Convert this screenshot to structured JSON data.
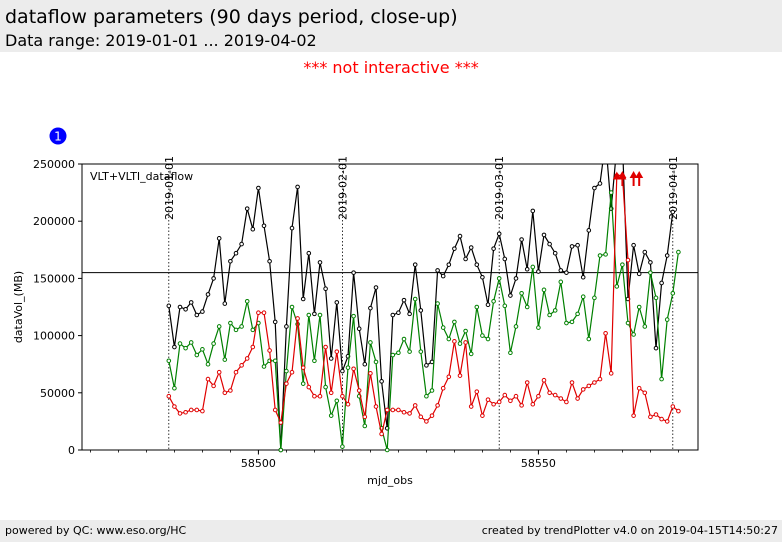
{
  "header": {
    "title": "dataflow parameters (90 days period, close-up)",
    "subtitle": "Data range: 2019-01-01 ... 2019-04-02"
  },
  "notice": "*** not interactive ***",
  "badge": "1",
  "footer": {
    "left": "powered by QC: www.eso.org/HC",
    "right": "created by trendPlotter v4.0 on 2019-04-15T14:50:27"
  },
  "colors": {
    "black": "#000000",
    "green": "#008000",
    "red": "#e00000",
    "notice": "#ff0000",
    "badge": "#0000ff"
  },
  "chart_data": {
    "type": "line",
    "title": "",
    "xlabel": "mjd_obs",
    "ylabel": "dataVol_(MB)",
    "annotation": "VLT+VLTI_dataflow",
    "xlim": [
      58468.5,
      58578.5
    ],
    "ylim": [
      0,
      250000
    ],
    "x_ticks": [
      58500,
      58550
    ],
    "x_ticks_minor_step": 5,
    "y_ticks": [
      0,
      50000,
      100000,
      150000,
      200000,
      250000
    ],
    "reference_line": 155000,
    "date_markers": [
      {
        "label": "2019-01-01",
        "x": 58484
      },
      {
        "label": "2019-02-01",
        "x": 58515
      },
      {
        "label": "2019-03-01",
        "x": 58543
      },
      {
        "label": "2019-04-01",
        "x": 58574
      }
    ],
    "x": [
      58484,
      58485,
      58486,
      58487,
      58488,
      58489,
      58490,
      58491,
      58492,
      58493,
      58494,
      58495,
      58496,
      58497,
      58498,
      58499,
      58500,
      58501,
      58502,
      58503,
      58504,
      58505,
      58506,
      58507,
      58508,
      58509,
      58510,
      58511,
      58512,
      58513,
      58514,
      58515,
      58516,
      58517,
      58518,
      58519,
      58520,
      58521,
      58522,
      58523,
      58524,
      58525,
      58526,
      58527,
      58528,
      58529,
      58530,
      58531,
      58532,
      58533,
      58534,
      58535,
      58536,
      58537,
      58538,
      58539,
      58540,
      58541,
      58542,
      58543,
      58544,
      58545,
      58546,
      58547,
      58548,
      58549,
      58550,
      58551,
      58552,
      58553,
      58554,
      58555,
      58556,
      58557,
      58558,
      58559,
      58560,
      58561,
      58562,
      58563,
      58564,
      58565,
      58566,
      58567,
      58568,
      58569,
      58570,
      58571,
      58572,
      58573,
      58574,
      58575
    ],
    "series": [
      {
        "color": "#000000",
        "values": [
          126000,
          90000,
          125000,
          123000,
          129000,
          118000,
          121000,
          136000,
          150000,
          185000,
          128000,
          165000,
          172000,
          180000,
          211000,
          193000,
          229000,
          196000,
          165000,
          112000,
          0,
          108000,
          194000,
          230000,
          132000,
          172000,
          119000,
          164000,
          141000,
          80000,
          129000,
          69000,
          82000,
          155000,
          106000,
          75000,
          124000,
          142000,
          60000,
          19000,
          118000,
          120000,
          131000,
          119000,
          162000,
          122000,
          74000,
          77000,
          157000,
          152000,
          162000,
          176000,
          187000,
          167000,
          177000,
          162000,
          151000,
          127000,
          176000,
          189000,
          167000,
          135000,
          150000,
          184000,
          158000,
          209000,
          156000,
          188000,
          180000,
          172000,
          157000,
          155000,
          178000,
          179000,
          151000,
          192000,
          229000,
          233000,
          270000,
          211000,
          265000,
          270000,
          132000,
          179000,
          154000,
          173000,
          164000,
          89000,
          146000,
          170000,
          208000,
          null
        ],
        "over_range_x": [
          58565,
          58567,
          58568
        ]
      },
      {
        "color": "#008000",
        "values": [
          78000,
          54000,
          93000,
          89000,
          94000,
          83000,
          88000,
          75000,
          93000,
          108000,
          79000,
          111000,
          105000,
          108000,
          130000,
          105000,
          111000,
          73000,
          78000,
          78000,
          0,
          69000,
          125000,
          110000,
          58000,
          118000,
          78000,
          118000,
          55000,
          30000,
          43000,
          3000,
          72000,
          117000,
          47000,
          21000,
          94000,
          77000,
          19000,
          0,
          83000,
          85000,
          97000,
          86000,
          132000,
          86000,
          47000,
          52000,
          128000,
          107000,
          97000,
          112000,
          93000,
          104000,
          84000,
          125000,
          100000,
          97000,
          130000,
          150000,
          126000,
          85000,
          108000,
          137000,
          125000,
          160000,
          107000,
          140000,
          118000,
          122000,
          147000,
          111000,
          112000,
          119000,
          134000,
          97000,
          133000,
          170000,
          171000,
          225000,
          143000,
          162000,
          111000,
          101000,
          125000,
          108000,
          155000,
          133000,
          62000,
          114000,
          137000,
          173000
        ]
      },
      {
        "color": "#e00000",
        "values": [
          47000,
          38000,
          32000,
          33000,
          35000,
          35000,
          34000,
          62000,
          56000,
          68000,
          50000,
          52000,
          68000,
          74000,
          80000,
          90000,
          120000,
          120000,
          87000,
          35000,
          24000,
          58000,
          68000,
          115000,
          72000,
          55000,
          47000,
          47000,
          90000,
          50000,
          86000,
          47000,
          40000,
          71000,
          52000,
          29000,
          67000,
          38000,
          14000,
          35000,
          35000,
          35000,
          33000,
          32000,
          39000,
          29000,
          25000,
          30000,
          39000,
          54000,
          64000,
          95000,
          65000,
          94000,
          38000,
          51000,
          30000,
          44000,
          40000,
          42000,
          48000,
          43000,
          47000,
          39000,
          59000,
          40000,
          47000,
          61000,
          50000,
          48000,
          45000,
          42000,
          59000,
          45000,
          53000,
          56000,
          59000,
          62000,
          102000,
          67000,
          240000,
          240000,
          166000,
          30000,
          54000,
          50000,
          29000,
          31000,
          27000,
          25000,
          38000,
          34000
        ]
      }
    ]
  }
}
